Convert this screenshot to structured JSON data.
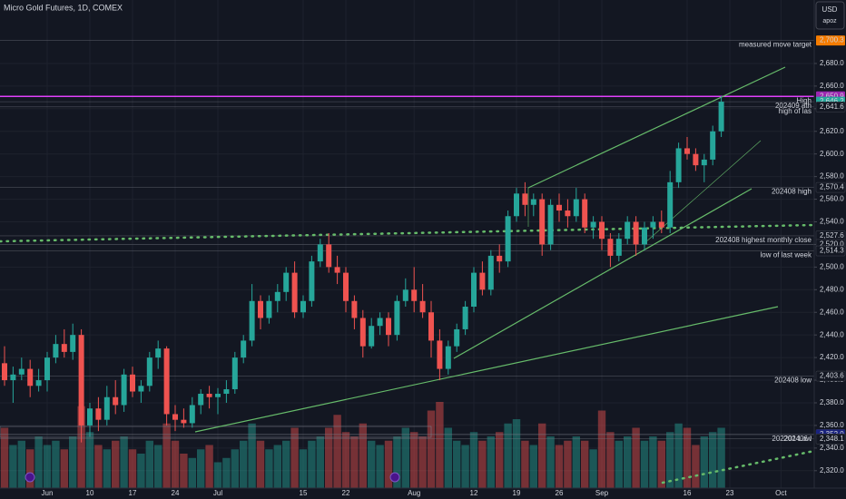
{
  "chart_data": {
    "type": "candlestick",
    "title": "Micro Gold Futures, 1D, COMEX",
    "currency": "USD",
    "user": "apoz",
    "up_color": "#26a69a",
    "down_color": "#ef5350",
    "ylim": [
      2304.6,
      2736.1
    ],
    "yticks": [
      {
        "value": 2320,
        "label": "2,320.0"
      },
      {
        "value": 2340,
        "label": "2,340.0"
      },
      {
        "value": 2360,
        "label": "2,360.0"
      },
      {
        "value": 2380,
        "label": "2,380.0"
      },
      {
        "value": 2400,
        "label": "2,400.0"
      },
      {
        "value": 2420,
        "label": "2,420.0"
      },
      {
        "value": 2440,
        "label": "2,440.0"
      },
      {
        "value": 2460,
        "label": "2,460.0"
      },
      {
        "value": 2480,
        "label": "2,480.0"
      },
      {
        "value": 2500,
        "label": "2,500.0"
      },
      {
        "value": 2520,
        "label": "2,520.0"
      },
      {
        "value": 2540,
        "label": "2,540.0"
      },
      {
        "value": 2560,
        "label": "2,560.0"
      },
      {
        "value": 2580,
        "label": "2,580.0"
      },
      {
        "value": 2600,
        "label": "2,600.0"
      },
      {
        "value": 2620,
        "label": "2,620.0"
      },
      {
        "value": 2640,
        "label": "2,640.0"
      },
      {
        "value": 2660,
        "label": "2,660.0"
      },
      {
        "value": 2680,
        "label": "2,680.0"
      }
    ],
    "grid": true,
    "categories": [
      null,
      null,
      null,
      null,
      null,
      "Jun",
      null,
      null,
      null,
      null,
      "10",
      null,
      null,
      null,
      null,
      "17",
      null,
      null,
      null,
      null,
      "24",
      null,
      null,
      null,
      null,
      "Jul",
      null,
      null,
      null,
      null,
      null,
      null,
      null,
      null,
      null,
      "15",
      null,
      null,
      null,
      null,
      "22",
      null,
      null,
      null,
      null,
      null,
      null,
      null,
      "Aug",
      null,
      null,
      null,
      null,
      null,
      null,
      "12",
      null,
      null,
      null,
      null,
      "19",
      null,
      null,
      null,
      null,
      "26",
      null,
      null,
      null,
      null,
      "Sep",
      null,
      null,
      null,
      null,
      null,
      null,
      null,
      null,
      null,
      "16",
      null,
      null,
      null,
      null,
      "23",
      null,
      null,
      null,
      null,
      null,
      "Oct",
      null
    ],
    "open": [
      2415,
      2400,
      2405,
      2410,
      2395,
      2400,
      2420,
      2432,
      2425,
      2440,
      2360,
      2375,
      2365,
      2385,
      2378,
      2405,
      2390,
      2395,
      2420,
      2428,
      2370,
      2365,
      2362,
      2378,
      2388,
      2385,
      2388,
      2392,
      2420,
      2435,
      2470,
      2455,
      2470,
      2478,
      2495,
      2460,
      2470,
      2505,
      2520,
      2500,
      2495,
      2470,
      2455,
      2430,
      2448,
      2455,
      2440,
      2470,
      2480,
      2470,
      2460,
      2435,
      2410,
      2430,
      2445,
      2465,
      2495,
      2480,
      2510,
      2505,
      2545,
      2565,
      2555,
      2560,
      2520,
      2555,
      2550,
      2545,
      2560,
      2535,
      2540,
      2525,
      2510,
      2525,
      2540,
      2520,
      2535,
      2540,
      2535,
      2575,
      2605,
      2600,
      2590,
      2595,
      2620,
      null,
      null,
      null,
      null,
      null,
      null,
      null,
      null
    ],
    "high": [
      2430,
      2412,
      2420,
      2418,
      2410,
      2425,
      2440,
      2445,
      2450,
      2445,
      2380,
      2385,
      2395,
      2400,
      2410,
      2412,
      2400,
      2425,
      2435,
      2430,
      2378,
      2375,
      2385,
      2392,
      2395,
      2393,
      2400,
      2425,
      2440,
      2485,
      2475,
      2475,
      2485,
      2500,
      2505,
      2475,
      2510,
      2525,
      2530,
      2510,
      2500,
      2475,
      2462,
      2455,
      2460,
      2460,
      2475,
      2490,
      2500,
      2485,
      2470,
      2445,
      2435,
      2450,
      2470,
      2500,
      2505,
      2515,
      2520,
      2550,
      2570,
      2575,
      2565,
      2565,
      2560,
      2565,
      2560,
      2570,
      2565,
      2545,
      2545,
      2530,
      2530,
      2545,
      2545,
      2540,
      2545,
      2550,
      2585,
      2610,
      2615,
      2605,
      2600,
      2625,
      2650.9,
      null,
      null,
      null,
      null,
      null,
      null,
      null,
      null
    ],
    "low": [
      2395,
      2380,
      2400,
      2385,
      2390,
      2390,
      2415,
      2420,
      2418,
      2345,
      2350,
      2355,
      2360,
      2370,
      2372,
      2385,
      2380,
      2390,
      2410,
      2360,
      2355,
      2358,
      2358,
      2370,
      2375,
      2370,
      2380,
      2388,
      2415,
      2430,
      2445,
      2450,
      2460,
      2470,
      2455,
      2455,
      2465,
      2500,
      2495,
      2485,
      2460,
      2445,
      2420,
      2428,
      2440,
      2430,
      2435,
      2465,
      2460,
      2455,
      2420,
      2400,
      2405,
      2425,
      2440,
      2460,
      2475,
      2475,
      2495,
      2500,
      2540,
      2545,
      2545,
      2510,
      2515,
      2540,
      2535,
      2540,
      2530,
      2525,
      2515,
      2500,
      2505,
      2520,
      2510,
      2515,
      2525,
      2530,
      2530,
      2570,
      2595,
      2585,
      2575,
      2590,
      2615,
      null,
      null,
      null,
      null,
      null,
      null,
      null,
      null
    ],
    "close": [
      2400,
      2405,
      2410,
      2395,
      2400,
      2420,
      2432,
      2425,
      2440,
      2360,
      2375,
      2365,
      2385,
      2378,
      2405,
      2390,
      2395,
      2420,
      2428,
      2370,
      2365,
      2362,
      2378,
      2388,
      2385,
      2388,
      2392,
      2420,
      2435,
      2470,
      2455,
      2470,
      2478,
      2495,
      2460,
      2470,
      2505,
      2520,
      2500,
      2495,
      2470,
      2455,
      2430,
      2448,
      2455,
      2440,
      2470,
      2480,
      2470,
      2460,
      2435,
      2410,
      2430,
      2445,
      2465,
      2495,
      2480,
      2510,
      2505,
      2545,
      2565,
      2555,
      2560,
      2520,
      2555,
      2550,
      2545,
      2560,
      2535,
      2540,
      2525,
      2510,
      2525,
      2540,
      2520,
      2535,
      2540,
      2535,
      2575,
      2605,
      2600,
      2590,
      2595,
      2620,
      2646.2,
      null,
      null,
      null,
      null,
      null,
      null,
      null,
      null
    ],
    "volume": [
      70,
      50,
      55,
      45,
      60,
      50,
      55,
      45,
      60,
      95,
      65,
      50,
      45,
      55,
      60,
      45,
      40,
      55,
      50,
      75,
      55,
      40,
      35,
      45,
      50,
      30,
      35,
      45,
      55,
      75,
      55,
      45,
      50,
      55,
      70,
      45,
      55,
      60,
      70,
      85,
      65,
      60,
      75,
      55,
      50,
      55,
      60,
      70,
      65,
      60,
      90,
      100,
      70,
      55,
      50,
      65,
      55,
      60,
      65,
      75,
      80,
      55,
      50,
      75,
      60,
      50,
      55,
      60,
      55,
      45,
      90,
      65,
      55,
      60,
      70,
      55,
      60,
      55,
      65,
      75,
      70,
      50,
      60,
      65,
      70,
      null,
      null,
      null,
      null,
      null,
      null,
      null,
      null
    ],
    "levels": [
      {
        "label": "measured move target",
        "value": 2700.3,
        "value_label": "2,700.3",
        "color": "#f57c00"
      },
      {
        "label": "High",
        "value": 2650.9,
        "value_label": "2,650.9",
        "color": "#1a237e"
      },
      {
        "value": 2650.9,
        "value_label": "2,650.9",
        "color": "#9c27b0"
      },
      {
        "label": "202409 ath",
        "value": 2646.2,
        "value_label": "2,646.2",
        "color": "#26a69a"
      },
      {
        "label": "high of las",
        "value": 2641.6,
        "value_label": "2,641.6",
        "color": "#131722"
      },
      {
        "label": "202408 high",
        "value": 2570.4,
        "value_label": "2,570.4",
        "color": "#131722"
      },
      {
        "label": "202408 highest monthly close",
        "value": 2527.6,
        "value_label": "2,527.6",
        "color": "#131722"
      },
      {
        "value": 2520.0,
        "value_label": "2,520.0",
        "color": "#131722"
      },
      {
        "label": "low of last week",
        "value": 2514.3,
        "value_label": "2,514.3",
        "color": "#131722"
      },
      {
        "label": "202408 low",
        "value": 2403.6,
        "value_label": "2,403.6",
        "color": "#131722"
      },
      {
        "label": "202406 l",
        "value": 2352.0,
        "value_label": "2,352.0",
        "color": "#131722"
      },
      {
        "label": "202201 Low",
        "value": 2352.0,
        "value_label": "2,352.0",
        "color": "#1a237e"
      },
      {
        "value": 2348.1,
        "value_label": "2,348.1",
        "color": "#131722"
      }
    ]
  }
}
